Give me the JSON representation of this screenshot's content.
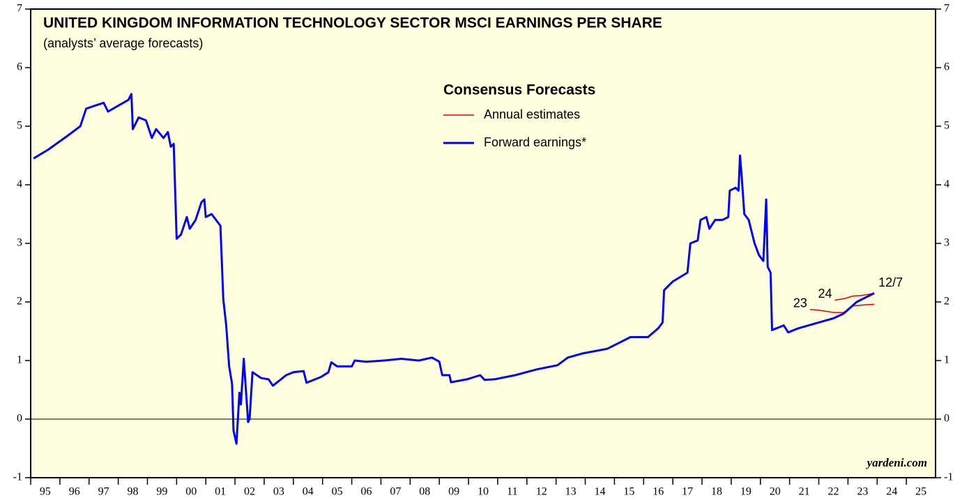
{
  "chart_data": {
    "type": "line",
    "title": "UNITED KINGDOM INFORMATION TECHNOLOGY SECTOR MSCI EARNINGS PER SHARE",
    "subtitle": "(analysts’ average forecasts)",
    "legend_title": "Consensus Forecasts",
    "source": "yardeni.com",
    "xlim": [
      1995,
      2026
    ],
    "xticks": [
      {
        "value": 1995,
        "label": "95"
      },
      {
        "value": 1996,
        "label": "96"
      },
      {
        "value": 1997,
        "label": "97"
      },
      {
        "value": 1998,
        "label": "98"
      },
      {
        "value": 1999,
        "label": "99"
      },
      {
        "value": 2000,
        "label": "00"
      },
      {
        "value": 2001,
        "label": "01"
      },
      {
        "value": 2002,
        "label": "02"
      },
      {
        "value": 2003,
        "label": "03"
      },
      {
        "value": 2004,
        "label": "04"
      },
      {
        "value": 2005,
        "label": "05"
      },
      {
        "value": 2006,
        "label": "06"
      },
      {
        "value": 2007,
        "label": "07"
      },
      {
        "value": 2008,
        "label": "08"
      },
      {
        "value": 2009,
        "label": "09"
      },
      {
        "value": 2010,
        "label": "10"
      },
      {
        "value": 2011,
        "label": "11"
      },
      {
        "value": 2012,
        "label": "12"
      },
      {
        "value": 2013,
        "label": "13"
      },
      {
        "value": 2014,
        "label": "14"
      },
      {
        "value": 2015,
        "label": "15"
      },
      {
        "value": 2016,
        "label": "16"
      },
      {
        "value": 2017,
        "label": "17"
      },
      {
        "value": 2018,
        "label": "18"
      },
      {
        "value": 2019,
        "label": "19"
      },
      {
        "value": 2020,
        "label": "20"
      },
      {
        "value": 2021,
        "label": "21"
      },
      {
        "value": 2022,
        "label": "22"
      },
      {
        "value": 2023,
        "label": "23"
      },
      {
        "value": 2024,
        "label": "24"
      },
      {
        "value": 2025,
        "label": "25"
      }
    ],
    "ylim": [
      -1,
      7
    ],
    "yticks": [
      -1,
      0,
      1,
      2,
      3,
      4,
      5,
      6,
      7
    ],
    "zero_line": true,
    "background": "#ffffe0",
    "series": [
      {
        "name": "Forward earnings*",
        "color": "#0000ee",
        "end_label": "12/7",
        "x": [
          1995.1,
          1995.6,
          1996.3,
          1996.7,
          1996.9,
          1997.2,
          1997.5,
          1997.65,
          1998.0,
          1998.35,
          1998.45,
          1998.5,
          1998.7,
          1998.95,
          1999.15,
          1999.3,
          1999.55,
          1999.7,
          1999.8,
          1999.9,
          2000.0,
          2000.15,
          2000.35,
          2000.45,
          2000.65,
          2000.85,
          2000.95,
          2001.0,
          2001.2,
          2001.5,
          2001.6,
          2001.7,
          2001.8,
          2001.9,
          2001.95,
          2002.05,
          2002.15,
          2002.2,
          2002.3,
          2002.45,
          2002.5,
          2002.6,
          2002.9,
          2003.15,
          2003.3,
          2003.5,
          2003.75,
          2004.0,
          2004.35,
          2004.45,
          2004.95,
          2005.2,
          2005.3,
          2005.5,
          2006.0,
          2006.1,
          2006.5,
          2007.1,
          2007.7,
          2008.3,
          2008.75,
          2009.0,
          2009.1,
          2009.35,
          2009.4,
          2009.95,
          2010.4,
          2010.55,
          2010.9,
          2011.6,
          2012.35,
          2013.05,
          2013.4,
          2013.9,
          2014.75,
          2015.55,
          2016.15,
          2016.5,
          2016.65,
          2016.7,
          2017.0,
          2017.5,
          2017.6,
          2017.85,
          2017.95,
          2018.15,
          2018.25,
          2018.45,
          2018.7,
          2018.9,
          2018.95,
          2019.15,
          2019.25,
          2019.3,
          2019.35,
          2019.45,
          2019.6,
          2019.8,
          2019.95,
          2020.1,
          2020.2,
          2020.25,
          2020.35,
          2020.4,
          2020.8,
          2020.95,
          2021.3,
          2022.0,
          2022.5,
          2022.85,
          2023.3,
          2023.9
        ],
        "values": [
          4.45,
          4.6,
          4.85,
          5.0,
          5.3,
          5.35,
          5.4,
          5.25,
          5.35,
          5.45,
          5.55,
          4.95,
          5.15,
          5.1,
          4.8,
          4.95,
          4.8,
          4.9,
          4.65,
          4.7,
          3.08,
          3.15,
          3.45,
          3.25,
          3.4,
          3.7,
          3.75,
          3.45,
          3.5,
          3.3,
          2.05,
          1.6,
          0.9,
          0.6,
          -0.2,
          -0.42,
          0.45,
          0.25,
          1.03,
          -0.05,
          0.0,
          0.8,
          0.7,
          0.68,
          0.57,
          0.65,
          0.75,
          0.8,
          0.82,
          0.62,
          0.72,
          0.8,
          0.97,
          0.9,
          0.9,
          1.0,
          0.98,
          1.0,
          1.03,
          1.0,
          1.05,
          0.98,
          0.75,
          0.75,
          0.63,
          0.68,
          0.75,
          0.67,
          0.68,
          0.75,
          0.85,
          0.92,
          1.05,
          1.12,
          1.2,
          1.4,
          1.4,
          1.55,
          1.65,
          2.2,
          2.35,
          2.5,
          3.0,
          3.05,
          3.4,
          3.45,
          3.25,
          3.4,
          3.4,
          3.45,
          3.9,
          3.95,
          3.9,
          4.5,
          4.2,
          3.5,
          3.4,
          3.0,
          2.8,
          2.7,
          3.75,
          2.6,
          2.5,
          1.52,
          1.6,
          1.48,
          1.55,
          1.65,
          1.72,
          1.8,
          2.0,
          2.15
        ]
      }
    ],
    "annual_estimates": {
      "name": "Annual estimates",
      "color": "#e00000",
      "lines": [
        {
          "label": "23",
          "x": [
            2021.7,
            2022.0,
            2022.5,
            2022.85,
            2023.15,
            2023.55,
            2023.9
          ],
          "values": [
            1.87,
            1.86,
            1.82,
            1.82,
            1.93,
            1.95,
            1.96
          ]
        },
        {
          "label": "24",
          "x": [
            2022.55,
            2022.9,
            2023.15,
            2023.45,
            2023.7,
            2023.9
          ],
          "values": [
            2.03,
            2.06,
            2.1,
            2.11,
            2.13,
            2.15
          ]
        }
      ]
    }
  }
}
